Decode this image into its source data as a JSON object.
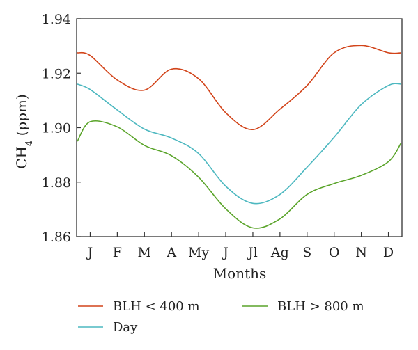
{
  "chart_data": {
    "type": "line",
    "title": "",
    "xlabel": "Months",
    "ylabel": "CH4 (ppm)",
    "ylabel_base": "CH",
    "ylabel_sub": "4",
    "ylabel_unit": " (ppm)",
    "categories": [
      "J",
      "F",
      "M",
      "A",
      "My",
      "J",
      "Jl",
      "Ag",
      "S",
      "O",
      "N",
      "D"
    ],
    "ylim": [
      1.86,
      1.94
    ],
    "yticks": [
      "1.86",
      "1.88",
      "1.90",
      "1.92",
      "1.94"
    ],
    "grid": false,
    "legend_position": "bottom",
    "series": [
      {
        "name": "BLH < 400 m",
        "color": "#d2441a",
        "values": [
          1.9265,
          1.9175,
          1.9138,
          1.9215,
          1.918,
          1.9055,
          1.8993,
          1.9068,
          1.9155,
          1.9275,
          1.9302,
          1.9275
        ]
      },
      {
        "name": "BLH > 800 m",
        "color": "#5aa42a",
        "values": [
          1.9022,
          1.9003,
          1.8935,
          1.8897,
          1.8818,
          1.8702,
          1.8632,
          1.8665,
          1.8755,
          1.8795,
          1.8825,
          1.8875
        ]
      },
      {
        "name": "Day",
        "color": "#4db8c0",
        "values": [
          1.914,
          1.9065,
          1.8995,
          1.8962,
          1.8905,
          1.8785,
          1.8722,
          1.8755,
          1.8855,
          1.8965,
          1.9085,
          1.9155
        ]
      }
    ]
  }
}
